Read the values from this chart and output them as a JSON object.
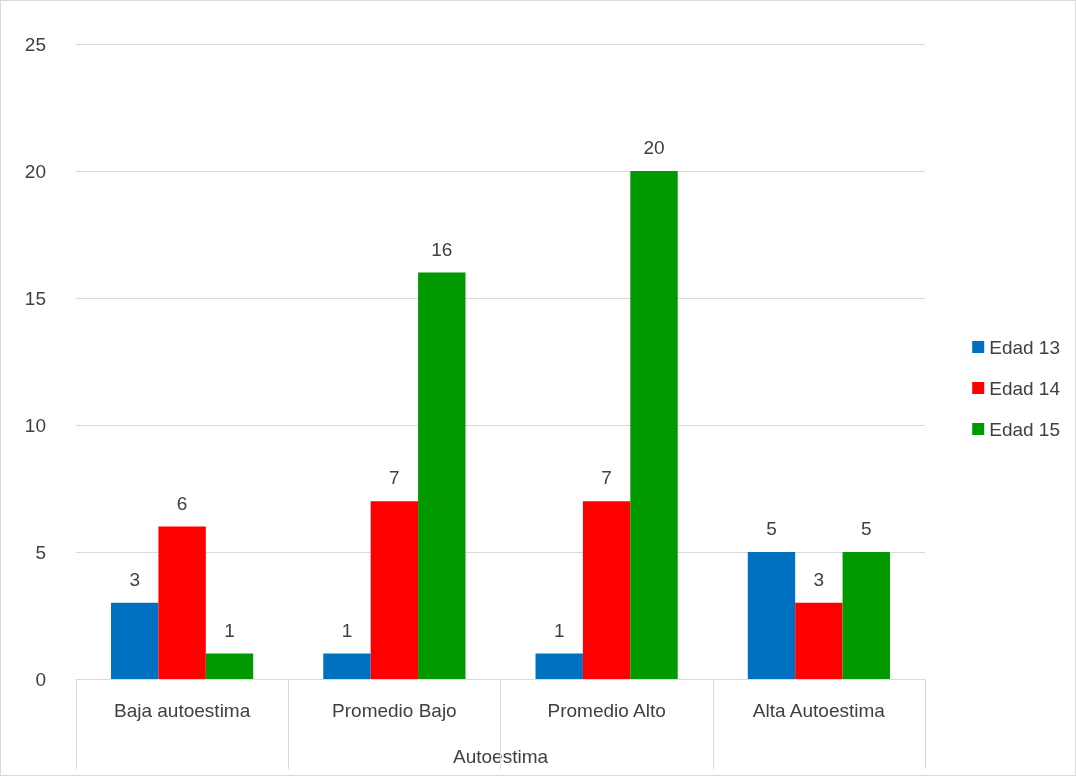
{
  "chart_data": {
    "type": "bar",
    "xlabel": "Autoestima",
    "categories": [
      "Baja autoestima",
      "Promedio Bajo",
      "Promedio Alto",
      "Alta Autoestima"
    ],
    "series": [
      {
        "name": "Edad 13",
        "color": "#0070c0",
        "values": [
          3,
          1,
          1,
          5
        ]
      },
      {
        "name": "Edad 14",
        "color": "#ff0000",
        "values": [
          6,
          7,
          7,
          3
        ]
      },
      {
        "name": "Edad 15",
        "color": "#009a00",
        "values": [
          1,
          16,
          20,
          5
        ]
      }
    ],
    "ylim": [
      0,
      25
    ],
    "yticks": [
      0,
      5,
      10,
      15,
      20,
      25
    ],
    "grid": "y",
    "legend": "right",
    "data_labels": true
  }
}
